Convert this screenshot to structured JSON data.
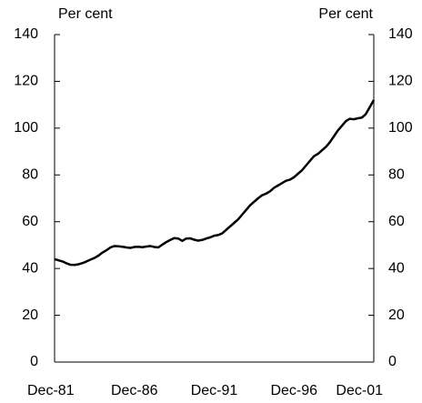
{
  "chart_data": {
    "type": "line",
    "y_label": "Per cent",
    "y2_label": "Per cent",
    "categories": [
      "Dec-81",
      null,
      null,
      null,
      null,
      null,
      null,
      null,
      null,
      null,
      null,
      null,
      null,
      null,
      null,
      null,
      null,
      null,
      null,
      null,
      "Dec-86",
      null,
      null,
      null,
      null,
      null,
      null,
      null,
      null,
      null,
      null,
      null,
      null,
      null,
      null,
      null,
      null,
      null,
      null,
      null,
      "Dec-91",
      null,
      null,
      null,
      null,
      null,
      null,
      null,
      null,
      null,
      null,
      null,
      null,
      null,
      null,
      null,
      null,
      null,
      null,
      null,
      "Dec-96",
      null,
      null,
      null,
      null,
      null,
      null,
      null,
      null,
      null,
      null,
      null,
      null,
      null,
      null,
      null,
      null,
      null,
      null,
      null,
      "Dec-01"
    ],
    "series": [
      {
        "color": "#000000",
        "values": [
          44,
          43.5,
          43,
          42.2,
          41.6,
          41.5,
          41.8,
          42.3,
          43,
          43.8,
          44.5,
          45.5,
          46.8,
          47.8,
          49,
          49.6,
          49.5,
          49.3,
          49,
          48.8,
          49.2,
          49.3,
          49.1,
          49.4,
          49.6,
          49.2,
          49,
          50.2,
          51.3,
          52.2,
          53,
          52.8,
          51.8,
          52.8,
          52.9,
          52.3,
          51.9,
          52.2,
          52.8,
          53.3,
          54,
          54.3,
          55,
          56.5,
          58,
          59.5,
          61,
          63,
          65,
          67,
          68.5,
          70,
          71.3,
          72,
          73,
          74.5,
          75.5,
          76.5,
          77.5,
          78,
          79,
          80.5,
          82,
          84,
          86,
          88,
          89,
          90.5,
          92,
          94,
          96.5,
          99,
          101,
          103,
          104,
          103.8,
          104.2,
          104.5,
          106,
          109,
          112
        ]
      }
    ],
    "ylim": [
      0,
      140
    ],
    "yticks": [
      0,
      20,
      40,
      60,
      80,
      100,
      120,
      140
    ],
    "y2lim": [
      0,
      140
    ],
    "y2ticks": [
      0,
      20,
      40,
      60,
      80,
      100,
      120,
      140
    ]
  }
}
